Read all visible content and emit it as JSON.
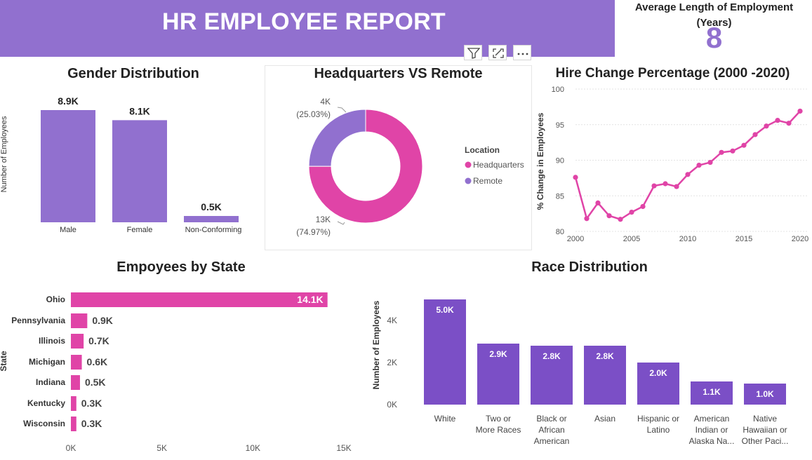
{
  "report": {
    "title": "HR EMPLOYEE REPORT",
    "kpi_label": "Average Length of Employment (Years)",
    "kpi_value": "8"
  },
  "colors": {
    "purple": "#9170cf",
    "bar_purple": "#7b4fc6",
    "pink": "#e044a7"
  },
  "visual_header": {
    "icons": [
      "filter-icon",
      "focus-mode-icon",
      "more-options-icon"
    ]
  },
  "chart_data": [
    {
      "id": "gender",
      "type": "bar",
      "title": "Gender Distribution",
      "ylabel": "Number of Employees",
      "xlabel": "",
      "categories": [
        "Male",
        "Female",
        "Non-Conforming"
      ],
      "values": [
        8.9,
        8.1,
        0.5
      ],
      "data_labels": [
        "8.9K",
        "8.1K",
        "0.5K"
      ],
      "ylim": [
        0,
        8.9
      ],
      "grid": false
    },
    {
      "id": "location",
      "type": "pie",
      "title": "Headquarters VS Remote",
      "legend_title": "Location",
      "legend_position": "right",
      "labels": [
        "Headquarters",
        "Remote"
      ],
      "values": [
        13,
        4
      ],
      "percentages": [
        74.97,
        25.03
      ],
      "data_labels": [
        [
          "13K",
          "(74.97%)"
        ],
        [
          "4K",
          "(25.03%)"
        ]
      ],
      "colors": [
        "#e044a7",
        "#9170cf"
      ]
    },
    {
      "id": "hire_change",
      "type": "line",
      "title": "Hire Change Percentage (2000 -2020)",
      "ylabel": "% Change in Employees",
      "xlabel": "",
      "x": [
        2000,
        2001,
        2002,
        2003,
        2004,
        2005,
        2006,
        2007,
        2008,
        2009,
        2010,
        2011,
        2012,
        2013,
        2014,
        2015,
        2016,
        2017,
        2018,
        2019,
        2020
      ],
      "values": [
        87.6,
        81.8,
        84.0,
        82.2,
        81.7,
        82.7,
        83.5,
        86.4,
        86.7,
        86.3,
        88.0,
        89.3,
        89.7,
        91.1,
        91.3,
        92.1,
        93.6,
        94.8,
        95.6,
        95.2,
        96.9
      ],
      "xticks": [
        2000,
        2005,
        2010,
        2015,
        2020
      ],
      "yticks": [
        80,
        85,
        90,
        95,
        100
      ],
      "xlim": [
        2000,
        2020
      ],
      "ylim": [
        80,
        100
      ],
      "grid": true
    },
    {
      "id": "state",
      "type": "bar",
      "orientation": "horizontal",
      "title": "Empoyees by State",
      "ylabel": "State",
      "xlabel": "",
      "categories": [
        "Ohio",
        "Pennsylvania",
        "Illinois",
        "Michigan",
        "Indiana",
        "Kentucky",
        "Wisconsin"
      ],
      "values": [
        14.1,
        0.9,
        0.7,
        0.6,
        0.5,
        0.3,
        0.3
      ],
      "data_labels": [
        "14.1K",
        "0.9K",
        "0.7K",
        "0.6K",
        "0.5K",
        "0.3K",
        "0.3K"
      ],
      "xticks": [
        "0K",
        "5K",
        "10K",
        "15K"
      ],
      "xlim": [
        0,
        15
      ],
      "grid": false
    },
    {
      "id": "race",
      "type": "bar",
      "title": "Race Distribution",
      "ylabel": "Number of Employees",
      "xlabel": "",
      "categories": [
        [
          "White"
        ],
        [
          "Two or",
          "More Races"
        ],
        [
          "Black or",
          "African",
          "American"
        ],
        [
          "Asian"
        ],
        [
          "Hispanic or",
          "Latino"
        ],
        [
          "American",
          "Indian or",
          "Alaska Na..."
        ],
        [
          "Native",
          "Hawaiian or",
          "Other Paci..."
        ]
      ],
      "values": [
        5.0,
        2.9,
        2.8,
        2.8,
        2.0,
        1.1,
        1.0
      ],
      "data_labels": [
        "5.0K",
        "2.9K",
        "2.8K",
        "2.8K",
        "2.0K",
        "1.1K",
        "1.0K"
      ],
      "yticks": [
        "0K",
        "2K",
        "4K"
      ],
      "ylim": [
        0,
        5.0
      ],
      "grid": false
    }
  ]
}
